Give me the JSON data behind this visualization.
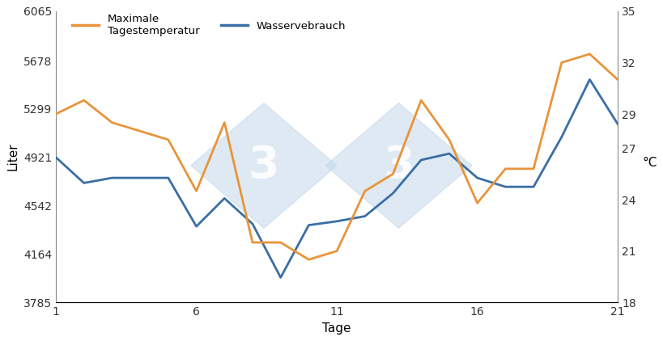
{
  "days": [
    1,
    2,
    3,
    4,
    5,
    6,
    7,
    8,
    9,
    10,
    11,
    12,
    13,
    14,
    15,
    16,
    17,
    18,
    19,
    20,
    21
  ],
  "water_liter": [
    4921,
    4720,
    4760,
    4760,
    4760,
    4380,
    4600,
    4400,
    3980,
    4390,
    4420,
    4460,
    4640,
    4900,
    4950,
    4760,
    4690,
    4690,
    5080,
    5530,
    5180
  ],
  "temp_celsius": [
    29.0,
    29.8,
    28.5,
    28.0,
    27.5,
    24.5,
    28.5,
    21.5,
    21.5,
    20.5,
    21.0,
    24.5,
    25.5,
    29.8,
    27.5,
    23.8,
    25.8,
    25.8,
    32.0,
    32.5,
    31.0
  ],
  "liter_yticks": [
    3785,
    4164,
    4542,
    4921,
    5299,
    5678,
    6065
  ],
  "temp_yticks": [
    18,
    21,
    24,
    27,
    29,
    32,
    35
  ],
  "xticks": [
    1,
    6,
    11,
    16,
    21
  ],
  "ylim_liter": [
    3785,
    6065
  ],
  "ylim_temp": [
    18,
    35
  ],
  "xlim": [
    1,
    21
  ],
  "xlabel": "Tage",
  "ylabel_left": "Liter",
  "ylabel_right": "°C",
  "legend_temp": "Maximale\nTagestemperatur",
  "legend_water": "Wasservebrauch",
  "color_temp": "#E8943A",
  "color_water": "#3A6EA5",
  "background_color": "#FFFFFF",
  "watermark_color": "#C5D8EA",
  "linewidth": 2.0
}
